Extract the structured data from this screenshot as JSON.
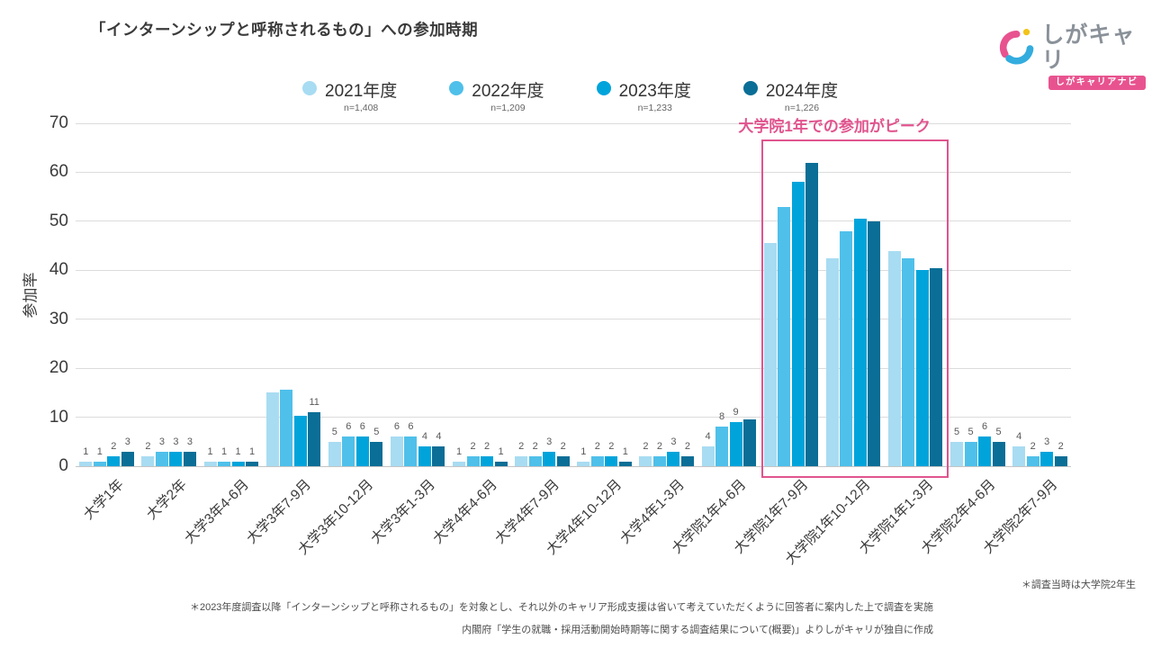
{
  "title": "「インターンシップと呼称されるもの」への参加時期",
  "logo": {
    "name": "しがキャリ",
    "subtitle": "しがキャリアナビ",
    "pink": "#e8538f",
    "blue": "#33acde",
    "yellow": "#f2c318"
  },
  "chart_data": {
    "type": "bar",
    "title": "「インターンシップと呼称されるもの」への参加時期",
    "ylabel": "参加率",
    "ylim": [
      0,
      70
    ],
    "yticks": [
      0,
      10,
      20,
      30,
      40,
      50,
      60,
      70
    ],
    "grid": true,
    "legend_position": "top",
    "categories": [
      "大学1年",
      "大学2年",
      "大学3年4-6月",
      "大学3年7-9月",
      "大学3年10-12月",
      "大学3年1-3月",
      "大学4年4-6月",
      "大学4年7-9月",
      "大学4年10-12月",
      "大学4年1-3月",
      "大学院1年4-6月",
      "大学院1年7-9月",
      "大学院1年10-12月",
      "大学院1年1-3月",
      "大学院2年4-6月",
      "大学院2年7-9月"
    ],
    "series": [
      {
        "name": "2021年度",
        "n_label": "n=1,408",
        "color": "#a8dcf2",
        "values": [
          1,
          2,
          1,
          15,
          5,
          6,
          1,
          2,
          1,
          2,
          4,
          45.5,
          42.5,
          44,
          5,
          4
        ],
        "labels": [
          "1",
          "2",
          "1",
          null,
          "5",
          "6",
          "1",
          "2",
          "1",
          "2",
          "4",
          null,
          null,
          null,
          "5",
          "4"
        ]
      },
      {
        "name": "2022年度",
        "n_label": "n=1,209",
        "color": "#4fc0ea",
        "values": [
          1,
          3,
          1,
          15.7,
          6,
          6,
          2,
          2,
          2,
          2,
          8,
          53,
          48,
          42.5,
          5,
          2
        ],
        "labels": [
          "1",
          "3",
          "1",
          null,
          "6",
          "6",
          "2",
          "2",
          "2",
          "2",
          "8",
          null,
          null,
          null,
          "5",
          "2"
        ]
      },
      {
        "name": "2023年度",
        "n_label": "n=1,233",
        "color": "#00a4db",
        "values": [
          2,
          3,
          1,
          10.3,
          6,
          4,
          2,
          3,
          2,
          3,
          9,
          58,
          50.5,
          40,
          6,
          3
        ],
        "labels": [
          "2",
          "3",
          "1",
          null,
          "6",
          "4",
          "2",
          "3",
          "2",
          "3",
          "9",
          null,
          null,
          null,
          "6",
          "3"
        ]
      },
      {
        "name": "2024年度",
        "n_label": "n=1,226",
        "color": "#0a6e96",
        "values": [
          3,
          3,
          1,
          11,
          5,
          4,
          1,
          2,
          1,
          2,
          9.5,
          62,
          50,
          40.5,
          5,
          2
        ],
        "labels": [
          "3",
          "3",
          "1",
          "11",
          "5",
          "4",
          "1",
          "2",
          "1",
          "2",
          null,
          null,
          null,
          null,
          "5",
          "2"
        ]
      }
    ],
    "annotation": {
      "text": "大学院1年での参加がピーク",
      "color": "#e0548e",
      "box_from": "大学院1年7-9月",
      "box_to": "大学院1年1-3月"
    }
  },
  "footnotes": [
    "＊調査当時は大学院2年生",
    "＊2023年度調査以降「インターンシップと呼称されるもの」を対象とし、それ以外のキャリア形成支援は省いて考えていただくように回答者に案内した上で調査を実施",
    "内閣府「学生の就職・採用活動開始時期等に関する調査結果について(概要)」よりしがキャリが独自に作成"
  ]
}
